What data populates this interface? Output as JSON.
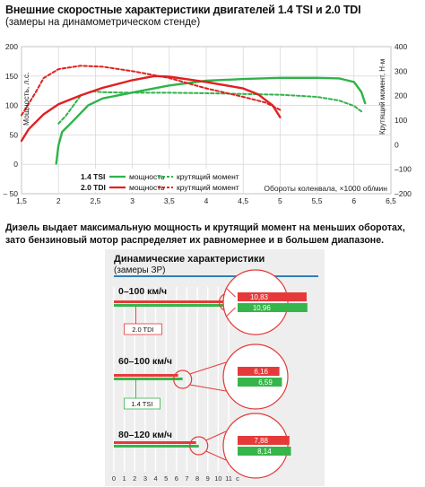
{
  "title": "Внешние скоростные характеристики двигателей 1.4 TSI и 2.0 TDI",
  "subtitle": "(замеры на динамометрическом стенде)",
  "caption": "Дизель выдает максимальную мощность и крутящий момент на меньших оборотах, зато бензиновый мотор распределяет их равномернее и в большем диапазоне.",
  "colors": {
    "tsi": "#2fb34a",
    "tdi": "#e02020",
    "bar_tdi": "#e63a3a",
    "bar_tsi": "#36b54a",
    "bar_bg": "#d9d9d9",
    "rule": "#2f7fb8"
  },
  "chart_data": [
    {
      "type": "line",
      "ylabel_left": "Мощность, л.с.",
      "ylabel_right": "Крутящий момент, Н·м",
      "xlabel": "Обороты коленвала, ×1000 об/мин",
      "xlim": [
        1.5,
        6.5
      ],
      "xticks": [
        "1,5",
        "2",
        "2,5",
        "3",
        "3,5",
        "4",
        "4,5",
        "5",
        "5,5",
        "6",
        "6,5"
      ],
      "ylim_left": [
        -50,
        200
      ],
      "yticks_left": [
        "200",
        "150",
        "100",
        "50",
        "0",
        "– 50"
      ],
      "ylim_right": [
        -200,
        400
      ],
      "yticks_right": [
        "400",
        "300",
        "200",
        "100",
        "0",
        "–100",
        "–200"
      ],
      "grid": true,
      "legend": {
        "rows": [
          {
            "engine": "1.4 TSI",
            "power": "мощность",
            "torque": "крутящий момент"
          },
          {
            "engine": "2.0 TDI",
            "power": "мощность",
            "torque": "крутящий момент"
          }
        ]
      },
      "series": [
        {
          "name": "1.4 TSI мощность",
          "axis": "left",
          "style": "solid",
          "color": "tsi",
          "points": [
            [
              1.97,
              1
            ],
            [
              2.0,
              32
            ],
            [
              2.05,
              55
            ],
            [
              2.2,
              74
            ],
            [
              2.4,
              100
            ],
            [
              2.6,
              112
            ],
            [
              3.0,
              122
            ],
            [
              3.5,
              134
            ],
            [
              4.0,
              142
            ],
            [
              4.5,
              145
            ],
            [
              5.0,
              147
            ],
            [
              5.5,
              147
            ],
            [
              5.8,
              146
            ],
            [
              6.0,
              140
            ],
            [
              6.1,
              123
            ],
            [
              6.15,
              104
            ]
          ]
        },
        {
          "name": "1.4 TSI крутящий момент",
          "axis": "right",
          "style": "dashed",
          "color": "tsi",
          "points": [
            [
              2.0,
              86
            ],
            [
              2.1,
              118
            ],
            [
              2.3,
              200
            ],
            [
              2.45,
              218
            ],
            [
              2.6,
              214
            ],
            [
              3.0,
              212
            ],
            [
              3.5,
              212
            ],
            [
              4.0,
              210
            ],
            [
              4.5,
              207
            ],
            [
              5.0,
              204
            ],
            [
              5.5,
              195
            ],
            [
              5.8,
              180
            ],
            [
              6.0,
              158
            ],
            [
              6.1,
              136
            ]
          ]
        },
        {
          "name": "2.0 TDI мощность",
          "axis": "left",
          "style": "solid",
          "color": "tdi",
          "points": [
            [
              1.5,
              40
            ],
            [
              1.6,
              60
            ],
            [
              1.8,
              85
            ],
            [
              2.0,
              102
            ],
            [
              2.3,
              117
            ],
            [
              2.6,
              130
            ],
            [
              3.0,
              143
            ],
            [
              3.3,
              150
            ],
            [
              3.5,
              149
            ],
            [
              4.0,
              140
            ],
            [
              4.5,
              129
            ],
            [
              4.7,
              119
            ],
            [
              4.9,
              100
            ],
            [
              5.0,
              80
            ]
          ]
        },
        {
          "name": "2.0 TDI крутящий момент",
          "axis": "right",
          "style": "dashed",
          "color": "tdi",
          "points": [
            [
              1.5,
              120
            ],
            [
              1.6,
              168
            ],
            [
              1.7,
              218
            ],
            [
              1.8,
              272
            ],
            [
              2.0,
              308
            ],
            [
              2.3,
              322
            ],
            [
              2.6,
              318
            ],
            [
              3.0,
              300
            ],
            [
              3.5,
              272
            ],
            [
              4.0,
              230
            ],
            [
              4.5,
              195
            ],
            [
              4.8,
              172
            ],
            [
              5.0,
              142
            ]
          ]
        }
      ]
    },
    {
      "type": "bar",
      "title": "Динамические характеристики",
      "subtitle": "(замеры ЗР)",
      "unit": "с",
      "xlim": [
        0,
        11
      ],
      "xticks": [
        "0",
        "1",
        "2",
        "3",
        "4",
        "5",
        "6",
        "7",
        "8",
        "9",
        "10",
        "11"
      ],
      "callouts": [
        "2.0 TDI",
        "1.4 TSI"
      ],
      "groups": [
        {
          "label": "0–100 км/ч",
          "values": [
            {
              "series": "2.0 TDI",
              "value": 10.83,
              "label": "10,83"
            },
            {
              "series": "1.4 TSI",
              "value": 10.96,
              "label": "10,96"
            }
          ]
        },
        {
          "label": "60–100 км/ч",
          "values": [
            {
              "series": "2.0 TDI",
              "value": 6.16,
              "label": "6,16"
            },
            {
              "series": "1.4 TSI",
              "value": 6.59,
              "label": "6,59"
            }
          ]
        },
        {
          "label": "80–120 км/ч",
          "values": [
            {
              "series": "2.0 TDI",
              "value": 7.88,
              "label": "7,88"
            },
            {
              "series": "1.4 TSI",
              "value": 8.14,
              "label": "8,14"
            }
          ]
        }
      ]
    }
  ]
}
